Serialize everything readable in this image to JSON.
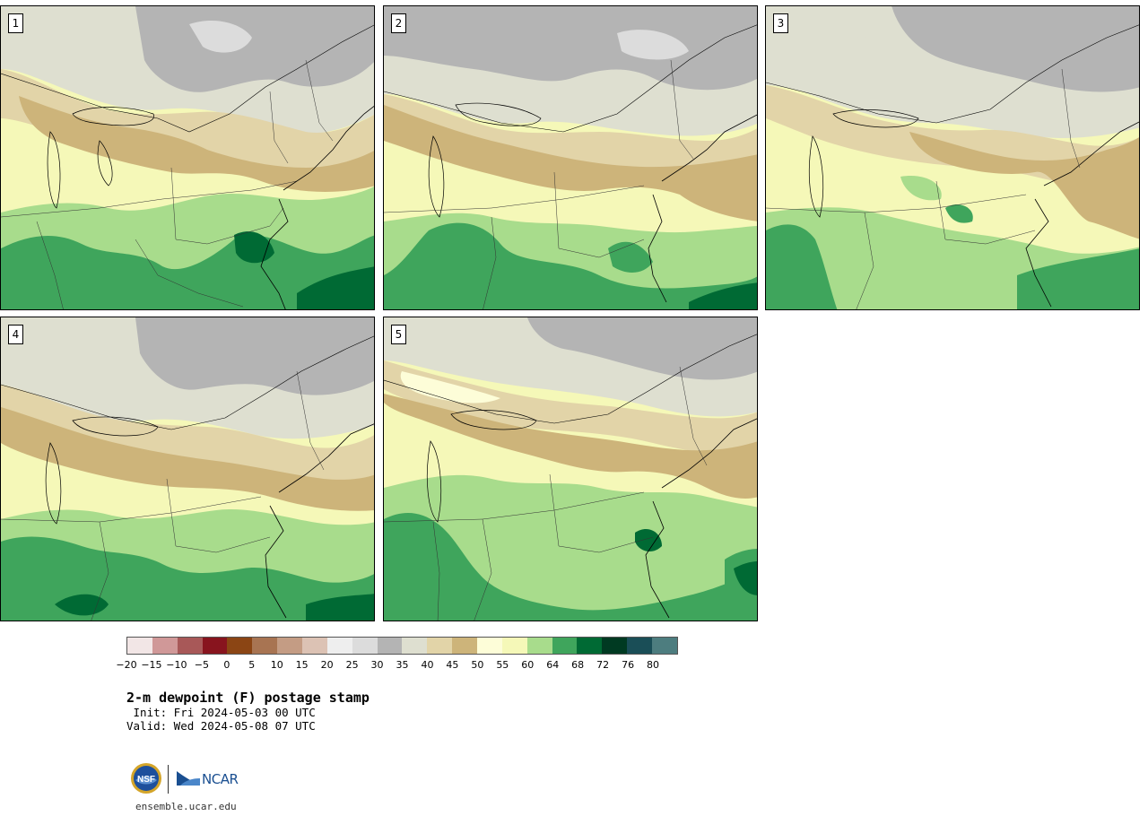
{
  "panels": [
    {
      "label": "1"
    },
    {
      "label": "2"
    },
    {
      "label": "3"
    },
    {
      "label": "4"
    },
    {
      "label": "5"
    }
  ],
  "colorbar": {
    "colors": [
      "#f2e6e6",
      "#d09898",
      "#a85858",
      "#88141e",
      "#8b4514",
      "#a87452",
      "#c49c84",
      "#dcc2b4",
      "#eeeeee",
      "#dcdcdc",
      "#b4b4b4",
      "#dedfd0",
      "#e2d4a8",
      "#cdb47a",
      "#fdfdd8",
      "#f5f8b8",
      "#a8dc8c",
      "#3fa55c",
      "#006a34",
      "#003a22",
      "#1a4e57",
      "#4d7d7f"
    ],
    "ticks": [
      "−20",
      "−15",
      "−10",
      "−5",
      "0",
      "5",
      "10",
      "15",
      "20",
      "25",
      "30",
      "35",
      "40",
      "45",
      "50",
      "55",
      "60",
      "64",
      "68",
      "72",
      "76",
      "80"
    ]
  },
  "title": "2-m dewpoint (F) postage stamp",
  "init": " Init: Fri 2024-05-03 00 UTC",
  "valid": "Valid: Wed 2024-05-08 07 UTC",
  "website": "ensemble.ucar.edu",
  "logos": {
    "nsf_text": "NSF",
    "ncar_text": "NCAR"
  }
}
